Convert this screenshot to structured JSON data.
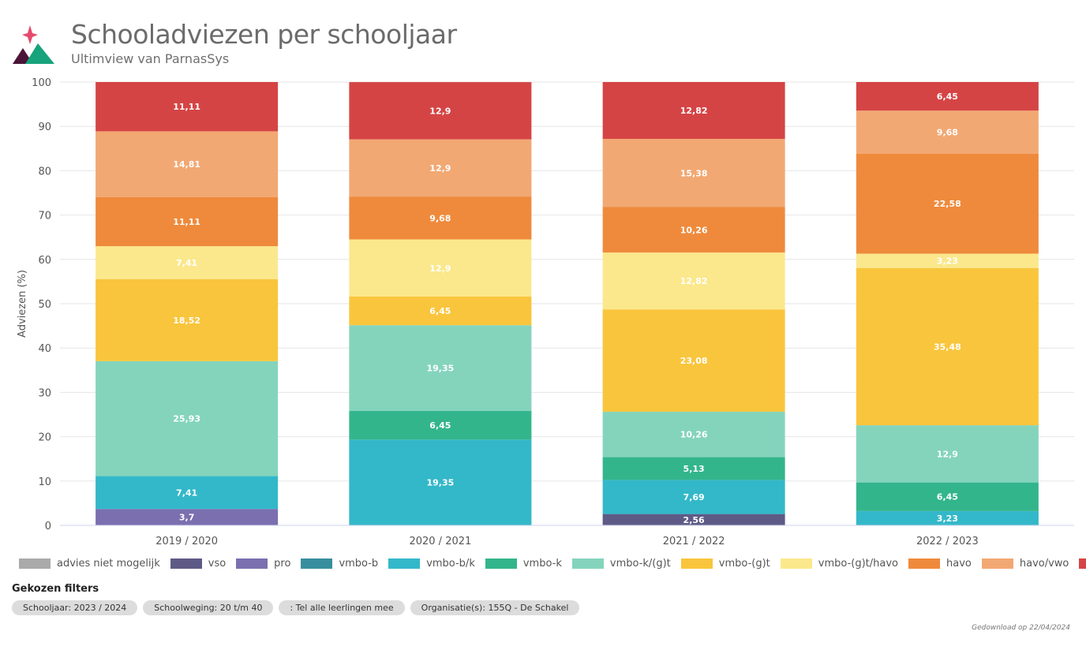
{
  "header": {
    "title": "Schooladviezen per schooljaar",
    "subtitle": "Ultimview van ParnasSys"
  },
  "colors": {
    "advies niet mogelijk": "#aaaaaa",
    "vso": "#5e5a86",
    "pro": "#7b6fb0",
    "vmbo-b": "#378f9e",
    "vmbo-b/k": "#33b8c9",
    "vmbo-k": "#33b58c",
    "vmbo-k/(g)t": "#84d4bc",
    "vmbo-(g)t": "#f9c53c",
    "vmbo-(g)t/havo": "#fbe88c",
    "havo": "#ef8a3c",
    "havo/vwo": "#f2a873",
    "vwo": "#d54445"
  },
  "chart_data": {
    "type": "bar",
    "stacked": true,
    "categories": [
      "2019 / 2020",
      "2020 / 2021",
      "2021 / 2022",
      "2022 / 2023"
    ],
    "ylabel": "Adviezen (%)",
    "ylim": [
      0,
      100
    ],
    "yticks": [
      0,
      10,
      20,
      30,
      40,
      50,
      60,
      70,
      80,
      90,
      100
    ],
    "grid": true,
    "legend_position": "bottom",
    "series": [
      {
        "name": "advies niet mogelijk",
        "values": [
          null,
          null,
          null,
          null
        ],
        "labels": [
          "",
          "",
          "",
          ""
        ]
      },
      {
        "name": "vso",
        "values": [
          null,
          null,
          2.56,
          null
        ],
        "labels": [
          "",
          "",
          "2,56",
          ""
        ]
      },
      {
        "name": "pro",
        "values": [
          3.7,
          null,
          null,
          null
        ],
        "labels": [
          "3,7",
          "",
          "",
          ""
        ]
      },
      {
        "name": "vmbo-b",
        "values": [
          null,
          null,
          null,
          null
        ],
        "labels": [
          "",
          "",
          "",
          ""
        ]
      },
      {
        "name": "vmbo-b/k",
        "values": [
          7.41,
          19.35,
          7.69,
          3.23
        ],
        "labels": [
          "7,41",
          "19,35",
          "7,69",
          "3,23"
        ]
      },
      {
        "name": "vmbo-k",
        "values": [
          null,
          6.45,
          5.13,
          6.45
        ],
        "labels": [
          "",
          "6,45",
          "5,13",
          "6,45"
        ]
      },
      {
        "name": "vmbo-k/(g)t",
        "values": [
          25.93,
          19.35,
          10.26,
          12.9
        ],
        "labels": [
          "25,93",
          "19,35",
          "10,26",
          "12,9"
        ]
      },
      {
        "name": "vmbo-(g)t",
        "values": [
          18.52,
          6.45,
          23.08,
          35.48
        ],
        "labels": [
          "18,52",
          "6,45",
          "23,08",
          "35,48"
        ]
      },
      {
        "name": "vmbo-(g)t/havo",
        "values": [
          7.41,
          12.9,
          12.82,
          3.23
        ],
        "labels": [
          "7,41",
          "12,9",
          "12,82",
          "3,23"
        ]
      },
      {
        "name": "havo",
        "values": [
          11.11,
          9.68,
          10.26,
          22.58
        ],
        "labels": [
          "11,11",
          "9,68",
          "10,26",
          "22,58"
        ]
      },
      {
        "name": "havo/vwo",
        "values": [
          14.81,
          12.9,
          15.38,
          9.68
        ],
        "labels": [
          "14,81",
          "12,9",
          "15,38",
          "9,68"
        ]
      },
      {
        "name": "vwo",
        "values": [
          11.11,
          12.9,
          12.82,
          6.45
        ],
        "labels": [
          "11,11",
          "12,9",
          "12,82",
          "6,45"
        ]
      }
    ]
  },
  "filters": {
    "title": "Gekozen filters",
    "chips": [
      "Schooljaar: 2023 / 2024",
      "Schoolweging: 20 t/m 40",
      ": Tel alle leerlingen mee",
      "Organisatie(s): 155Q - De Schakel"
    ]
  },
  "footer": {
    "download_text": "Gedownload op 22/04/2024"
  }
}
